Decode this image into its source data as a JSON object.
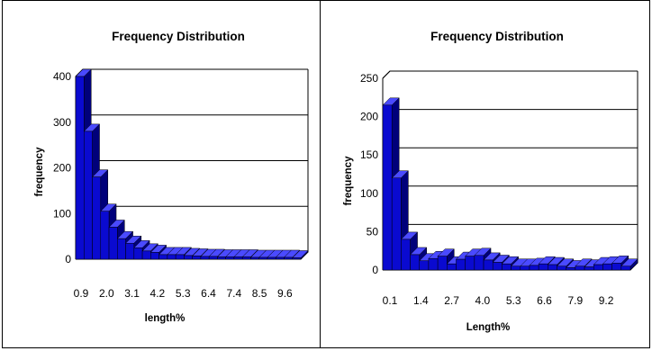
{
  "colors": {
    "bar": "#0a0ad0",
    "bar_side": "#00007a",
    "bar_top": "#4a4aff",
    "grid": "#000000"
  },
  "chart_data": [
    {
      "type": "bar",
      "title": "Frequency Distribution",
      "xlabel": "length%",
      "ylabel": "frequency",
      "ylim": [
        0,
        400
      ],
      "yticks": [
        0,
        100,
        200,
        300,
        400
      ],
      "xtick_labels": [
        "0.9",
        "2.0",
        "3.1",
        "4.2",
        "5.3",
        "6.4",
        "7.4",
        "8.5",
        "9.6"
      ],
      "grid": true,
      "legend": "none",
      "values": [
        400,
        280,
        180,
        105,
        70,
        45,
        35,
        25,
        18,
        15,
        10,
        10,
        10,
        8,
        7,
        6,
        6,
        5,
        5,
        5,
        5,
        4,
        4,
        4,
        4,
        4,
        3
      ]
    },
    {
      "type": "bar",
      "title": "Frequency Distribution",
      "xlabel": "Length%",
      "ylabel": "frequency",
      "ylim": [
        0,
        250
      ],
      "yticks": [
        0,
        50,
        100,
        150,
        200,
        250
      ],
      "xtick_labels": [
        "0.1",
        "1.4",
        "2.7",
        "4.0",
        "5.3",
        "6.6",
        "7.9",
        "9.2"
      ],
      "grid": true,
      "legend": "none",
      "values": [
        215,
        120,
        40,
        20,
        12,
        15,
        18,
        8,
        14,
        18,
        19,
        13,
        10,
        8,
        5,
        5,
        6,
        8,
        7,
        5,
        3,
        5,
        4,
        7,
        8,
        9,
        5
      ]
    }
  ]
}
